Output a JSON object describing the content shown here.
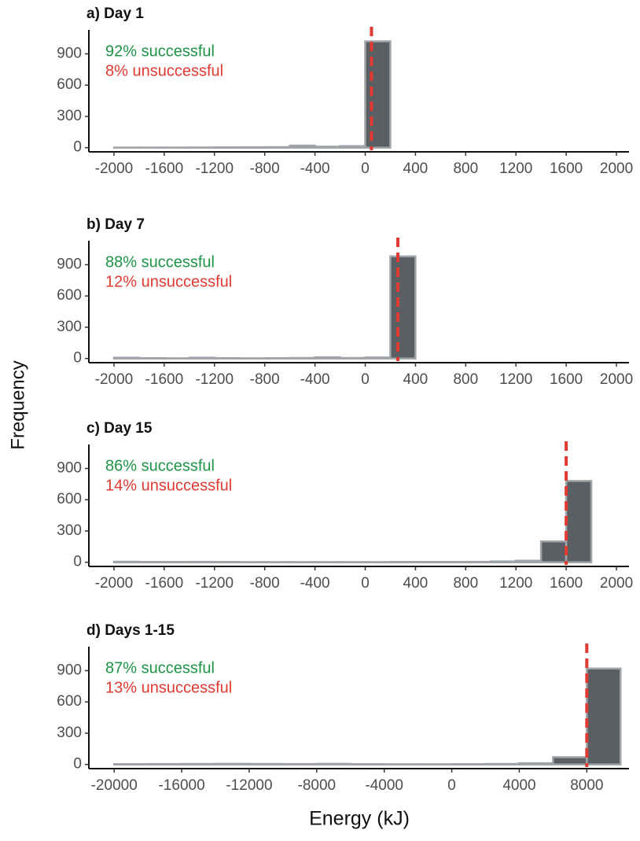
{
  "ylabel": "Frequency",
  "xlabel": "Energy (kJ)",
  "chart_data": [
    {
      "type": "histogram",
      "title": "a) Day 1",
      "bins": [
        -2000,
        -1800,
        -1600,
        -1400,
        -1200,
        -1000,
        -800,
        -600,
        -400,
        -200,
        0,
        200,
        400,
        600,
        800,
        1000,
        1200,
        1400,
        1600,
        1800,
        2000
      ],
      "values": [
        1,
        1,
        1,
        2,
        3,
        4,
        5,
        20,
        10,
        15,
        1020,
        0,
        0,
        0,
        0,
        0,
        0,
        0,
        0,
        0
      ],
      "color": "#5a5f63",
      "edgecolor": "#a0a4a8",
      "xlim": [
        -2200,
        2100
      ],
      "xticks": [
        -2000,
        -1600,
        -1200,
        -800,
        -400,
        0,
        400,
        800,
        1200,
        1600,
        2000
      ],
      "ylim": [
        -40,
        1130
      ],
      "yticks": [
        0,
        300,
        600,
        900
      ],
      "vline": {
        "value": 50,
        "color": "#e03a32"
      },
      "annotations": [
        {
          "text": "92% successful",
          "color": "#1e9446"
        },
        {
          "text": "8% unsuccessful",
          "color": "#e03a32"
        }
      ]
    },
    {
      "type": "histogram",
      "title": "b) Day 7",
      "bins": [
        -2000,
        -1800,
        -1600,
        -1400,
        -1200,
        -1000,
        -800,
        -600,
        -400,
        -200,
        0,
        200,
        400,
        600,
        800,
        1000,
        1200,
        1400,
        1600,
        1800,
        2000
      ],
      "values": [
        8,
        4,
        2,
        8,
        4,
        2,
        3,
        5,
        12,
        5,
        10,
        980,
        0,
        0,
        0,
        0,
        0,
        0,
        0,
        0
      ],
      "color": "#5a5f63",
      "edgecolor": "#a0a4a8",
      "xlim": [
        -2200,
        2100
      ],
      "xticks": [
        -2000,
        -1600,
        -1200,
        -800,
        -400,
        0,
        400,
        800,
        1200,
        1600,
        2000
      ],
      "ylim": [
        -40,
        1130
      ],
      "yticks": [
        0,
        300,
        600,
        900
      ],
      "vline": {
        "value": 260,
        "color": "#e03a32"
      },
      "annotations": [
        {
          "text": "88% successful",
          "color": "#1e9446"
        },
        {
          "text": "12% unsuccessful",
          "color": "#e03a32"
        }
      ]
    },
    {
      "type": "histogram",
      "title": "c) Day 15",
      "bins": [
        -2000,
        -1800,
        -1600,
        -1400,
        -1200,
        -1000,
        -800,
        -600,
        -400,
        -200,
        0,
        200,
        400,
        600,
        800,
        1000,
        1200,
        1400,
        1600,
        1800,
        2000
      ],
      "values": [
        5,
        3,
        3,
        4,
        3,
        2,
        2,
        2,
        2,
        2,
        2,
        3,
        3,
        3,
        4,
        8,
        15,
        200,
        780,
        0
      ],
      "color": "#5a5f63",
      "edgecolor": "#a0a4a8",
      "xlim": [
        -2200,
        2100
      ],
      "xticks": [
        -2000,
        -1600,
        -1200,
        -800,
        -400,
        0,
        400,
        800,
        1200,
        1600,
        2000
      ],
      "ylim": [
        -40,
        1130
      ],
      "yticks": [
        0,
        300,
        600,
        900
      ],
      "vline": {
        "value": 1600,
        "color": "#e03a32"
      },
      "annotations": [
        {
          "text": "86% successful",
          "color": "#1e9446"
        },
        {
          "text": "14% unsuccessful",
          "color": "#e03a32"
        }
      ]
    },
    {
      "type": "histogram",
      "title": "d) Days 1-15",
      "bins": [
        -20000,
        -18000,
        -16000,
        -14000,
        -12000,
        -10000,
        -8000,
        -6000,
        -4000,
        -2000,
        0,
        2000,
        4000,
        6000,
        8000,
        10000
      ],
      "values": [
        3,
        4,
        5,
        6,
        5,
        4,
        6,
        3,
        2,
        2,
        3,
        5,
        12,
        70,
        920
      ],
      "color": "#5a5f63",
      "edgecolor": "#a0a4a8",
      "xlim": [
        -21500,
        10500
      ],
      "xticks": [
        -20000,
        -16000,
        -12000,
        -8000,
        -4000,
        0,
        4000,
        8000
      ],
      "ylim": [
        -40,
        1130
      ],
      "yticks": [
        0,
        300,
        600,
        900
      ],
      "vline": {
        "value": 8000,
        "color": "#e03a32"
      },
      "annotations": [
        {
          "text": "87% successful",
          "color": "#1e9446"
        },
        {
          "text": "13% unsuccessful",
          "color": "#e03a32"
        }
      ]
    }
  ]
}
